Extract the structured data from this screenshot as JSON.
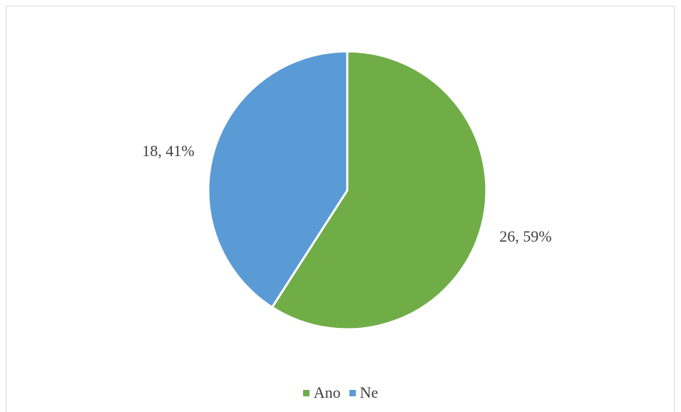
{
  "chart_data": {
    "type": "pie",
    "categories": [
      "Ano",
      "Ne"
    ],
    "values": [
      26,
      18
    ],
    "percentages": [
      59,
      41
    ],
    "data_labels": [
      "26, 59%",
      "18, 41%"
    ],
    "colors": [
      "#70ad47",
      "#5b9bd5"
    ],
    "legend_position": "bottom",
    "start_angle": "12 o'clock, clockwise"
  },
  "legend": {
    "items": [
      {
        "label": "Ano",
        "color": "#70ad47"
      },
      {
        "label": "Ne",
        "color": "#5b9bd5"
      }
    ]
  }
}
